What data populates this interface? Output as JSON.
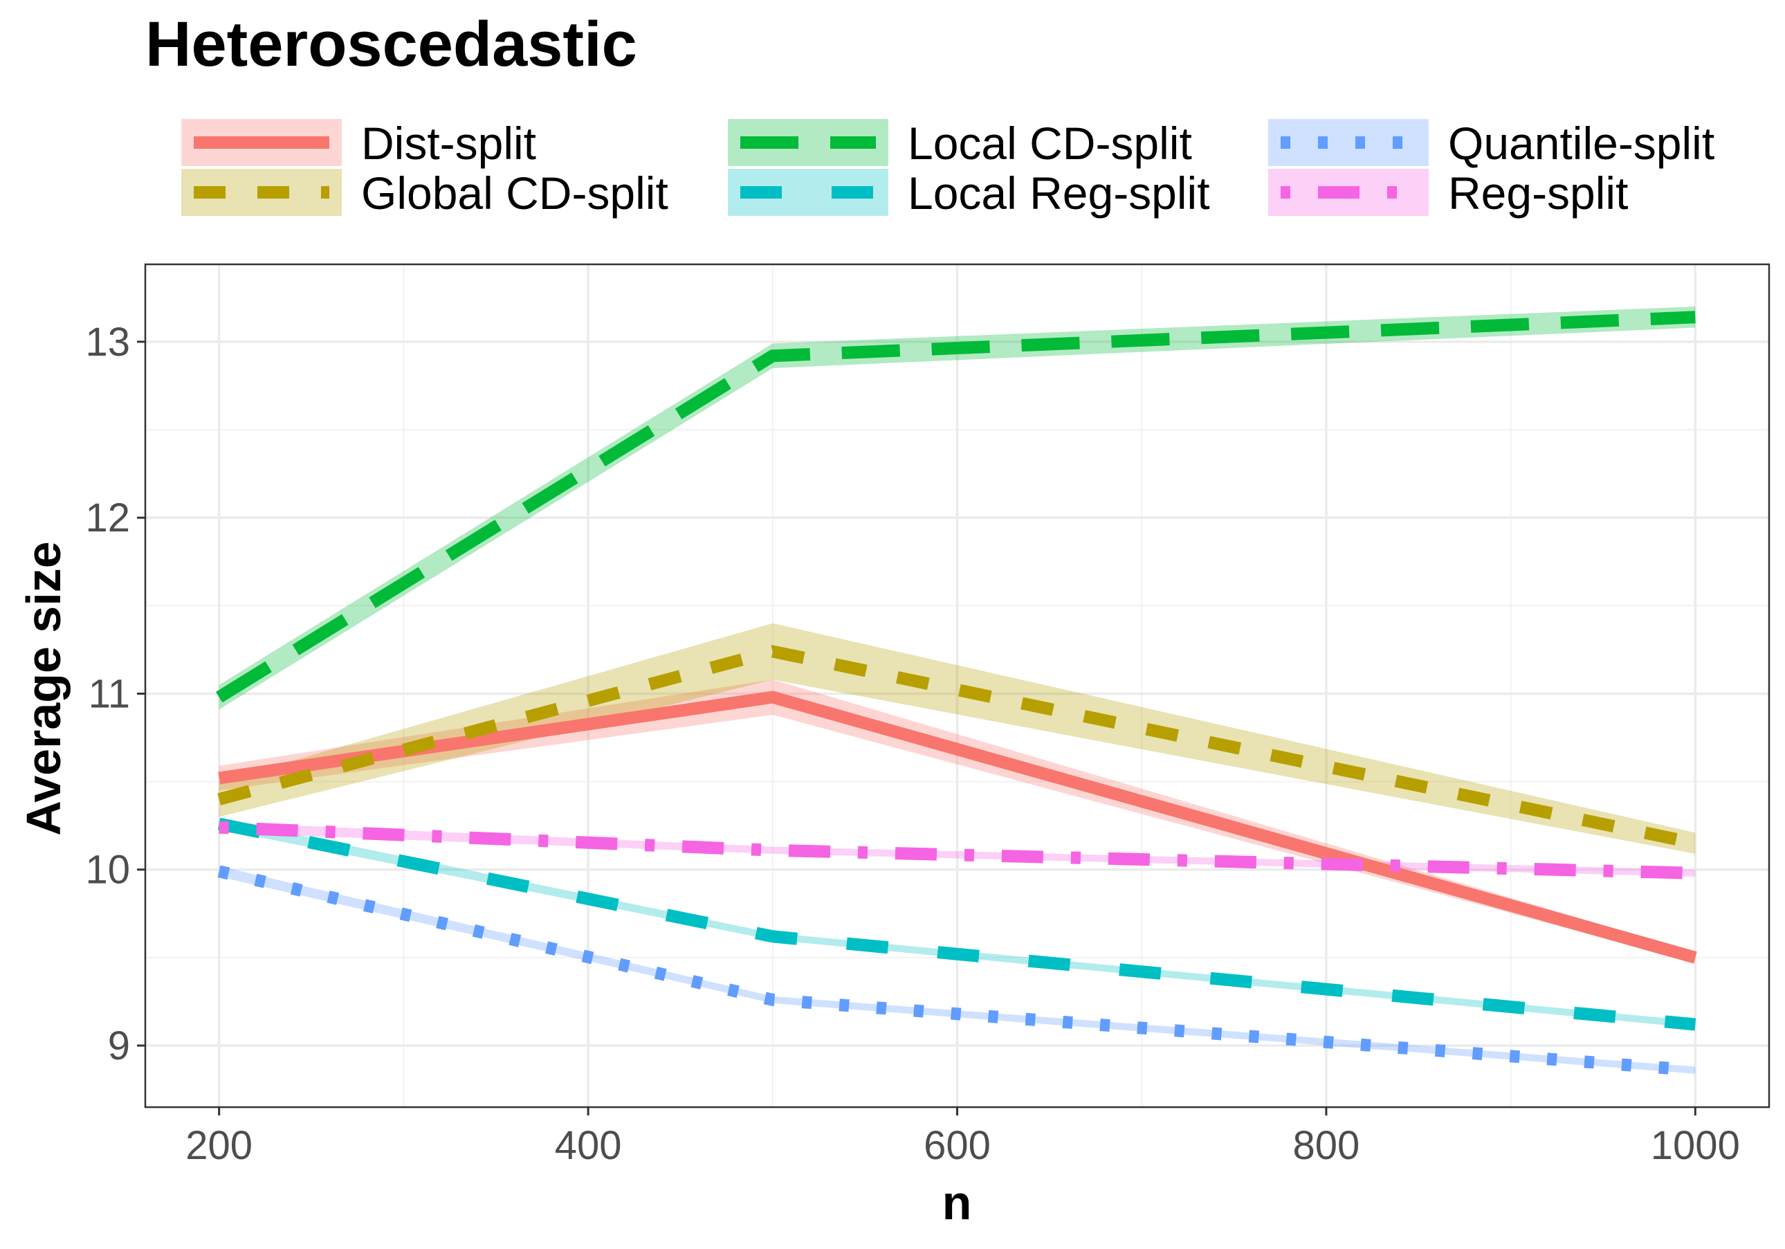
{
  "chart_data": {
    "type": "line",
    "title": "Heteroscedastic",
    "xlabel": "n",
    "ylabel": "Average size",
    "xlim": [
      160,
      1040
    ],
    "ylim": [
      8.65,
      13.44
    ],
    "x_ticks": [
      200,
      400,
      600,
      800,
      1000
    ],
    "x_tick_labels": [
      "200",
      "400",
      "600",
      "800",
      "1000"
    ],
    "y_ticks": [
      9,
      10,
      11,
      12,
      13
    ],
    "y_tick_labels": [
      "9",
      "10",
      "11",
      "12",
      "13"
    ],
    "grid": true,
    "legend_position": "top",
    "x": [
      200,
      500,
      1000
    ],
    "series": [
      {
        "name": "Dist-split",
        "color": "#F8766D",
        "dash": "solid",
        "values": [
          10.52,
          10.98,
          9.5
        ],
        "lower": [
          10.45,
          10.88,
          9.47
        ],
        "upper": [
          10.59,
          11.08,
          9.53
        ]
      },
      {
        "name": "Global CD-split",
        "color": "#B79F00",
        "dash": "dashed",
        "values": [
          10.4,
          11.24,
          10.15
        ],
        "lower": [
          10.3,
          11.08,
          10.09
        ],
        "upper": [
          10.5,
          11.4,
          10.21
        ]
      },
      {
        "name": "Local CD-split",
        "color": "#00BA38",
        "dash": "longdash",
        "values": [
          10.98,
          12.92,
          13.14
        ],
        "lower": [
          10.91,
          12.85,
          13.08
        ],
        "upper": [
          11.05,
          12.99,
          13.2
        ]
      },
      {
        "name": "Local Reg-split",
        "color": "#00BFC4",
        "dash": "longdash-sparse",
        "values": [
          10.26,
          9.62,
          9.12
        ],
        "lower": [
          10.23,
          9.6,
          9.1
        ],
        "upper": [
          10.29,
          9.64,
          9.14
        ]
      },
      {
        "name": "Quantile-split",
        "color": "#619CFF",
        "dash": "dotted",
        "values": [
          9.99,
          9.26,
          8.86
        ],
        "lower": [
          9.96,
          9.24,
          8.84
        ],
        "upper": [
          10.02,
          9.28,
          8.88
        ]
      },
      {
        "name": "Reg-split",
        "color": "#F564E3",
        "dash": "dotdash",
        "values": [
          10.24,
          10.11,
          9.98
        ],
        "lower": [
          10.21,
          10.09,
          9.96
        ],
        "upper": [
          10.27,
          10.13,
          10.0
        ]
      }
    ]
  }
}
